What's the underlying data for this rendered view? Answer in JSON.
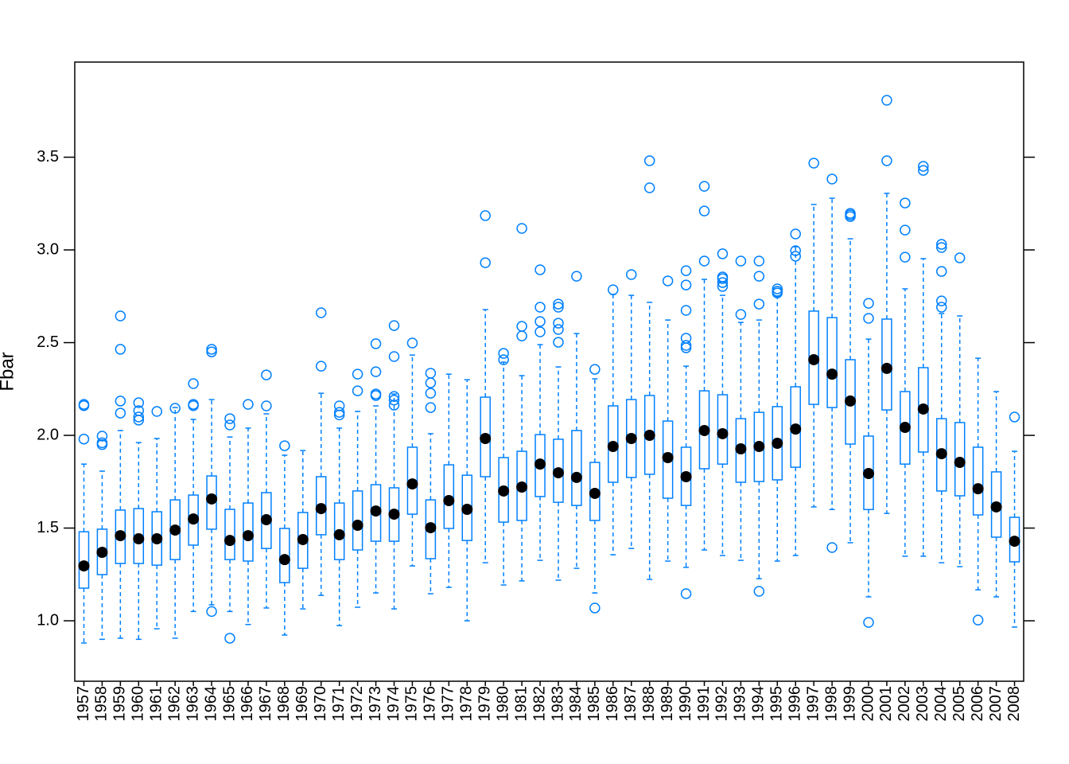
{
  "chart_data": {
    "type": "box",
    "ylabel": "Fbar",
    "categories": [
      "1957",
      "1958",
      "1959",
      "1960",
      "1961",
      "1962",
      "1963",
      "1964",
      "1965",
      "1966",
      "1967",
      "1968",
      "1969",
      "1970",
      "1971",
      "1972",
      "1973",
      "1974",
      "1975",
      "1976",
      "1977",
      "1978",
      "1979",
      "1980",
      "1981",
      "1982",
      "1983",
      "1984",
      "1985",
      "1986",
      "1987",
      "1988",
      "1989",
      "1990",
      "1991",
      "1992",
      "1993",
      "1994",
      "1995",
      "1996",
      "1997",
      "1998",
      "1999",
      "2000",
      "2001",
      "2002",
      "2003",
      "2004",
      "2005",
      "2006",
      "2007",
      "2008"
    ],
    "whisker_low": [
      0.88,
      0.9,
      0.906,
      0.9,
      0.957,
      0.906,
      1.05,
      1.086,
      1.05,
      0.98,
      1.069,
      0.923,
      1.064,
      1.137,
      0.974,
      1.073,
      1.15,
      1.064,
      1.296,
      1.146,
      1.18,
      1.0,
      1.313,
      1.193,
      1.215,
      1.326,
      1.219,
      1.283,
      1.15,
      1.356,
      1.39,
      1.223,
      1.322,
      1.288,
      1.382,
      1.352,
      1.326,
      1.227,
      1.322,
      1.352,
      1.614,
      1.6,
      1.421,
      1.129,
      1.579,
      1.348,
      1.348,
      1.313,
      1.292,
      1.167,
      1.129,
      0.966
    ],
    "q1": [
      1.176,
      1.249,
      1.309,
      1.309,
      1.3,
      1.33,
      1.408,
      1.494,
      1.33,
      1.322,
      1.39,
      1.206,
      1.283,
      1.464,
      1.33,
      1.382,
      1.429,
      1.429,
      1.575,
      1.335,
      1.498,
      1.433,
      1.777,
      1.532,
      1.541,
      1.67,
      1.639,
      1.622,
      1.541,
      1.747,
      1.773,
      1.79,
      1.661,
      1.622,
      1.82,
      1.845,
      1.747,
      1.751,
      1.76,
      1.828,
      2.167,
      2.15,
      1.953,
      1.6,
      2.137,
      1.845,
      1.91,
      1.7,
      1.674,
      1.571,
      1.451,
      1.318
    ],
    "median": [
      1.296,
      1.369,
      1.459,
      1.442,
      1.442,
      1.489,
      1.549,
      1.657,
      1.433,
      1.459,
      1.545,
      1.33,
      1.438,
      1.605,
      1.464,
      1.515,
      1.592,
      1.575,
      1.738,
      1.502,
      1.648,
      1.601,
      1.983,
      1.7,
      1.721,
      1.845,
      1.798,
      1.773,
      1.687,
      1.94,
      1.983,
      2.0,
      1.88,
      1.777,
      2.026,
      2.009,
      1.927,
      1.94,
      1.957,
      2.034,
      2.408,
      2.33,
      2.185,
      1.794,
      2.361,
      2.043,
      2.142,
      1.901,
      1.854,
      1.712,
      1.614,
      1.429
    ],
    "q3": [
      1.48,
      1.494,
      1.597,
      1.605,
      1.588,
      1.652,
      1.678,
      1.781,
      1.601,
      1.635,
      1.691,
      1.498,
      1.584,
      1.777,
      1.635,
      1.7,
      1.734,
      1.717,
      1.936,
      1.652,
      1.841,
      1.785,
      2.206,
      1.88,
      1.914,
      2.004,
      1.979,
      2.026,
      1.854,
      2.159,
      2.193,
      2.215,
      2.077,
      1.936,
      2.24,
      2.219,
      2.09,
      2.124,
      2.155,
      2.262,
      2.67,
      2.635,
      2.408,
      1.996,
      2.627,
      2.236,
      2.365,
      2.09,
      2.069,
      1.936,
      1.803,
      1.558
    ],
    "whisker_high": [
      1.845,
      1.807,
      2.026,
      1.961,
      1.983,
      2.15,
      2.086,
      2.193,
      1.991,
      2.039,
      2.116,
      1.893,
      1.918,
      2.227,
      2.039,
      2.129,
      2.159,
      2.223,
      2.433,
      2.009,
      2.33,
      2.3,
      2.678,
      2.395,
      2.322,
      2.489,
      2.369,
      2.549,
      2.305,
      2.76,
      2.755,
      2.717,
      2.622,
      2.373,
      2.841,
      2.755,
      2.609,
      2.622,
      2.747,
      3.017,
      3.245,
      3.279,
      3.06,
      2.519,
      3.305,
      2.79,
      2.953,
      2.657,
      2.644,
      2.416,
      2.236,
      1.914
    ],
    "outliers": [
      [
        2.167,
        2.16,
        1.98
      ],
      [
        1.996,
        1.96,
        1.95
      ],
      [
        2.644,
        2.464,
        2.185,
        2.12
      ],
      [
        2.176,
        2.133,
        2.099,
        2.082
      ],
      [
        2.129
      ],
      [
        2.146
      ],
      [
        2.279,
        2.167,
        2.16
      ],
      [
        2.464,
        2.45,
        1.05
      ],
      [
        2.09,
        2.056,
        0.906
      ],
      [
        2.167
      ],
      [
        2.326,
        2.159
      ],
      [
        1.944
      ],
      [],
      [
        2.661,
        2.373
      ],
      [
        2.159,
        2.124,
        2.11
      ],
      [
        2.33,
        2.24
      ],
      [
        2.494,
        2.343,
        2.223,
        2.215
      ],
      [
        2.592,
        2.425,
        2.21,
        2.19,
        2.163
      ],
      [
        2.498
      ],
      [
        2.335,
        2.283,
        2.227,
        2.15
      ],
      [],
      [],
      [
        3.185,
        2.931
      ],
      [
        2.442,
        2.408
      ],
      [
        3.116,
        2.588,
        2.536
      ],
      [
        2.893,
        2.691,
        2.614,
        2.558
      ],
      [
        2.708,
        2.691,
        2.605,
        2.571,
        2.502
      ],
      [
        2.858
      ],
      [
        2.356,
        1.069
      ],
      [
        2.785
      ],
      [
        2.867
      ],
      [
        3.481,
        3.335
      ],
      [
        2.833
      ],
      [
        2.888,
        2.811,
        2.674,
        2.524,
        2.485,
        2.472,
        1.146
      ],
      [
        3.343,
        3.21,
        2.94
      ],
      [
        2.979,
        2.854,
        2.845,
        2.824,
        2.803
      ],
      [
        2.94,
        2.652
      ],
      [
        2.94,
        2.858,
        2.708,
        1.159
      ],
      [
        2.79,
        2.777,
        2.768
      ],
      [
        3.086,
        2.996,
        2.966
      ],
      [
        3.468
      ],
      [
        3.382,
        1.395
      ],
      [
        3.197,
        3.189,
        3.18
      ],
      [
        2.712,
        2.631,
        0.991
      ],
      [
        3.807,
        3.481
      ],
      [
        3.253,
        3.107,
        2.961
      ],
      [
        3.451,
        3.429
      ],
      [
        3.03,
        3.013,
        2.884,
        2.725,
        2.691
      ],
      [
        2.957
      ],
      [
        1.004
      ],
      [],
      [
        2.099
      ]
    ],
    "color": "#0080ff",
    "median_color": "#000000",
    "ylim": [
      0.674,
      4.013
    ],
    "yticks": [
      {
        "value": 1,
        "label": "1.0"
      },
      1.5,
      {
        "value": 2,
        "label": "2.0"
      },
      2.5,
      {
        "value": 3,
        "label": "3.0"
      },
      3.5
    ]
  }
}
